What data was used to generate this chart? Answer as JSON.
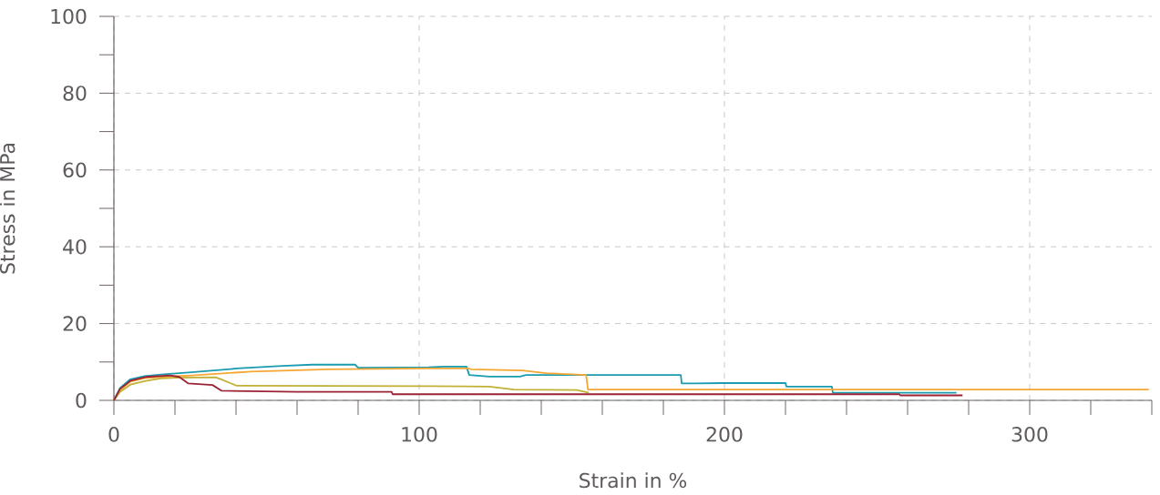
{
  "chart_data": {
    "type": "line",
    "xlabel": "Strain in %",
    "ylabel": "Stress in MPa",
    "xlim": [
      0,
      340
    ],
    "ylim": [
      0,
      100
    ],
    "xticks": [
      0,
      {
        "value": 20,
        "label": null
      },
      {
        "value": 40,
        "label": null
      },
      {
        "value": 60,
        "label": null
      },
      {
        "value": 80,
        "label": null
      },
      100,
      {
        "value": 120,
        "label": null
      },
      {
        "value": 140,
        "label": null
      },
      {
        "value": 160,
        "label": null
      },
      {
        "value": 180,
        "label": null
      },
      200,
      {
        "value": 220,
        "label": null
      },
      {
        "value": 240,
        "label": null
      },
      {
        "value": 260,
        "label": null
      },
      {
        "value": 280,
        "label": null
      },
      300,
      {
        "value": 320,
        "label": null
      },
      {
        "value": 340,
        "label": null
      }
    ],
    "yticks": [
      0,
      {
        "value": 10,
        "label": null
      },
      20,
      {
        "value": 30,
        "label": null
      },
      40,
      {
        "value": 50,
        "label": null
      },
      60,
      {
        "value": 70,
        "label": null
      },
      80,
      {
        "value": 90,
        "label": null
      },
      100
    ],
    "grid": true,
    "marker": "none",
    "line_style": "solid",
    "series": [
      {
        "color": "#1a9bb0",
        "x": [
          0,
          2,
          5.4,
          10,
          15.4,
          25.4,
          40.3,
          55.2,
          65,
          79,
          80,
          103,
          108,
          115.5,
          116.4,
          123,
          133,
          135,
          185.7,
          186,
          199.4,
          220,
          220.3,
          235.2,
          235.5,
          276
        ],
        "values": [
          0,
          3.2,
          5.5,
          6.3,
          6.7,
          7.3,
          8.3,
          9.0,
          9.3,
          9.3,
          8.5,
          8.6,
          8.8,
          8.8,
          6.6,
          6.2,
          6.2,
          6.6,
          6.6,
          4.4,
          4.5,
          4.5,
          3.6,
          3.6,
          2.0,
          2.0
        ]
      },
      {
        "color": "#f5a733",
        "x": [
          0,
          2,
          5.4,
          10,
          15.4,
          25.4,
          45,
          70,
          103,
          116,
          117,
          133.7,
          141.6,
          154.7,
          155.3,
          165,
          339
        ],
        "values": [
          0,
          2.6,
          4.9,
          5.8,
          6.1,
          6.5,
          7.5,
          8.1,
          8.3,
          8.3,
          8.1,
          7.8,
          7.1,
          6.6,
          2.8,
          2.8,
          2.8
        ]
      },
      {
        "color": "#c2b035",
        "x": [
          0,
          2,
          5.4,
          10,
          15.4,
          20.4,
          33.3,
          35.3,
          40.3,
          103,
          123,
          131,
          151.6,
          155.6
        ],
        "values": [
          0,
          2.2,
          4.1,
          5.0,
          5.7,
          5.9,
          6.0,
          5.4,
          3.8,
          3.7,
          3.6,
          2.8,
          2.7,
          2.0
        ]
      },
      {
        "color": "#9b2335",
        "x": [
          0,
          2,
          5.4,
          10.4,
          18.4,
          21.4,
          24.4,
          32.3,
          35.3,
          60,
          91,
          91.3,
          257.3,
          257.6,
          278
        ],
        "values": [
          0,
          3.0,
          5.1,
          6.1,
          6.5,
          6.1,
          4.4,
          4.0,
          2.5,
          2.2,
          2.2,
          1.6,
          1.6,
          1.3,
          1.3
        ]
      }
    ]
  }
}
